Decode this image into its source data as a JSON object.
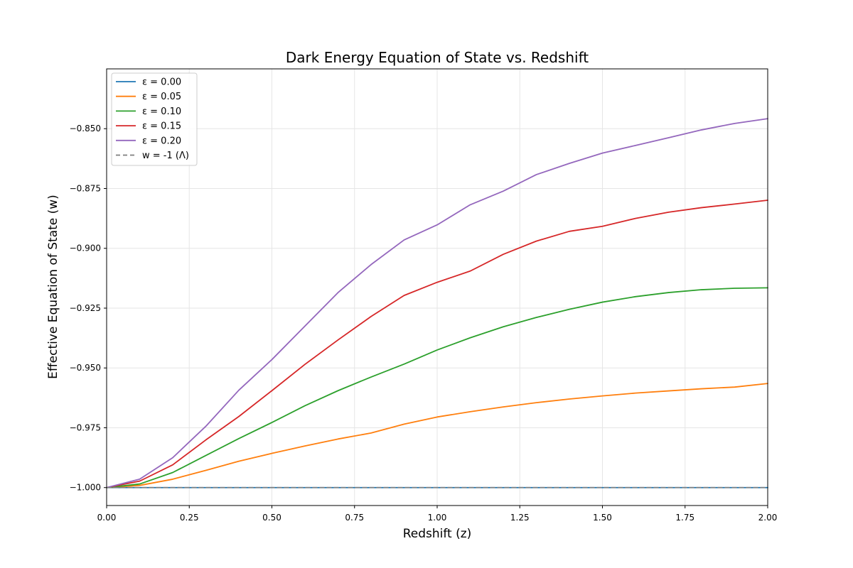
{
  "chart_data": {
    "type": "line",
    "title": "Dark Energy Equation of State vs. Redshift",
    "xlabel": "Redshift (z)",
    "ylabel": "Effective Equation of State (w)",
    "xlim": [
      0.0,
      2.0
    ],
    "ylim": [
      -1.0075,
      -0.825
    ],
    "grid": true,
    "legend_position": "top-left",
    "x_ticks": [
      {
        "value": 0.0,
        "label": "0.00"
      },
      {
        "value": 0.25,
        "label": "0.25"
      },
      {
        "value": 0.5,
        "label": "0.50"
      },
      {
        "value": 0.75,
        "label": "0.75"
      },
      {
        "value": 1.0,
        "label": "1.00"
      },
      {
        "value": 1.25,
        "label": "1.25"
      },
      {
        "value": 1.5,
        "label": "1.50"
      },
      {
        "value": 1.75,
        "label": "1.75"
      },
      {
        "value": 2.0,
        "label": "2.00"
      }
    ],
    "y_ticks": [
      {
        "value": -1.0,
        "label": "−1.000"
      },
      {
        "value": -0.975,
        "label": "−0.975"
      },
      {
        "value": -0.95,
        "label": "−0.950"
      },
      {
        "value": -0.925,
        "label": "−0.925"
      },
      {
        "value": -0.9,
        "label": "−0.900"
      },
      {
        "value": -0.875,
        "label": "−0.875"
      },
      {
        "value": -0.85,
        "label": "−0.850"
      }
    ],
    "x": [
      0.0,
      0.1,
      0.2,
      0.3,
      0.4,
      0.5,
      0.6,
      0.7,
      0.8,
      0.9,
      1.0,
      1.1,
      1.2,
      1.3,
      1.4,
      1.5,
      1.6,
      1.7,
      1.8,
      1.9,
      2.0
    ],
    "series": [
      {
        "name": "ε = 0.00",
        "color": "#1f77b4",
        "dashed": false,
        "values": [
          -1.0,
          -1.0,
          -1.0,
          -1.0,
          -1.0,
          -1.0,
          -1.0,
          -1.0,
          -1.0,
          -1.0,
          -1.0,
          -1.0,
          -1.0,
          -1.0,
          -1.0,
          -1.0,
          -1.0,
          -1.0,
          -1.0,
          -1.0,
          -1.0
        ]
      },
      {
        "name": "ε = 0.05",
        "color": "#ff7f0e",
        "dashed": false,
        "values": [
          -1.0,
          -0.9991,
          -0.9965,
          -0.9928,
          -0.989,
          -0.9857,
          -0.9826,
          -0.9797,
          -0.9772,
          -0.9735,
          -0.9705,
          -0.9683,
          -0.9663,
          -0.9645,
          -0.963,
          -0.9617,
          -0.9605,
          -0.9596,
          -0.9587,
          -0.958,
          -0.9565
        ]
      },
      {
        "name": "ε = 0.10",
        "color": "#2ca02c",
        "dashed": false,
        "values": [
          -1.0,
          -0.9985,
          -0.9937,
          -0.9866,
          -0.9795,
          -0.9728,
          -0.9658,
          -0.9595,
          -0.9538,
          -0.9484,
          -0.9425,
          -0.9374,
          -0.9328,
          -0.9289,
          -0.9255,
          -0.9225,
          -0.9202,
          -0.9185,
          -0.9173,
          -0.9167,
          -0.9165
        ]
      },
      {
        "name": "ε = 0.15",
        "color": "#d62728",
        "dashed": false,
        "values": [
          -1.0,
          -0.9973,
          -0.9905,
          -0.9801,
          -0.9703,
          -0.9595,
          -0.9485,
          -0.9383,
          -0.9285,
          -0.9197,
          -0.9142,
          -0.9095,
          -0.9025,
          -0.897,
          -0.8929,
          -0.8908,
          -0.8875,
          -0.8849,
          -0.883,
          -0.8815,
          -0.8799
        ]
      },
      {
        "name": "ε = 0.20",
        "color": "#9467bd",
        "dashed": false,
        "values": [
          -1.0,
          -0.9965,
          -0.9875,
          -0.9744,
          -0.9593,
          -0.9465,
          -0.9325,
          -0.9185,
          -0.9068,
          -0.8965,
          -0.8902,
          -0.8818,
          -0.8761,
          -0.8692,
          -0.8645,
          -0.8602,
          -0.857,
          -0.8538,
          -0.8505,
          -0.8478,
          -0.8458
        ]
      },
      {
        "name": "w = -1 (Λ)",
        "color": "#7f7f7f",
        "dashed": true,
        "values": [
          -1.0,
          -1.0,
          -1.0,
          -1.0,
          -1.0,
          -1.0,
          -1.0,
          -1.0,
          -1.0,
          -1.0,
          -1.0,
          -1.0,
          -1.0,
          -1.0,
          -1.0,
          -1.0,
          -1.0,
          -1.0,
          -1.0,
          -1.0,
          -1.0
        ]
      }
    ]
  }
}
